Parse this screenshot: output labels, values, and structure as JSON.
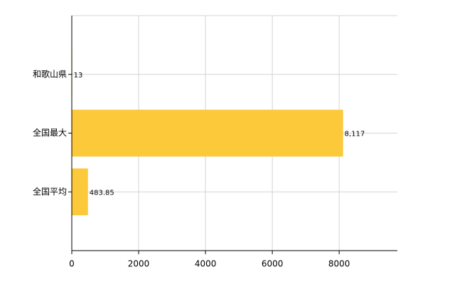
{
  "chart_data": {
    "type": "bar",
    "orientation": "horizontal",
    "categories": [
      "和歌山県",
      "全国最大",
      "全国平均"
    ],
    "values": [
      13,
      8117,
      483.85
    ],
    "value_labels": [
      "13",
      "8,117",
      "483.85"
    ],
    "color": "#fbc93a",
    "xlim": [
      0,
      9740
    ],
    "xticks": [
      0,
      2000,
      4000,
      6000,
      8000
    ],
    "grid": true
  }
}
